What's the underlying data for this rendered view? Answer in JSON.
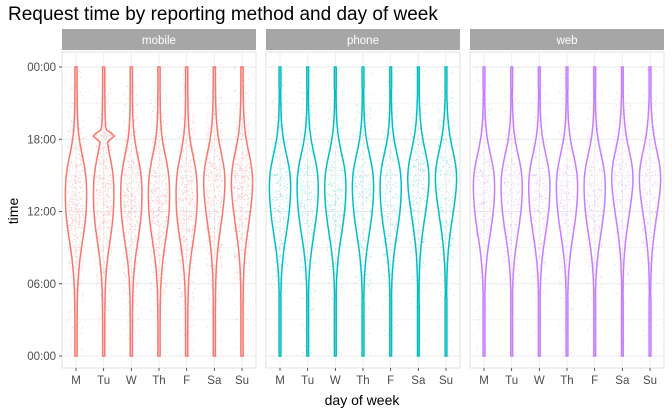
{
  "chart_data": {
    "type": "violin",
    "title": "Request time by reporting method and day of week",
    "xlabel": "day of week",
    "ylabel": "time",
    "ylim": [
      "00:00",
      "24:00"
    ],
    "y_tick_labels": [
      "00:00",
      "06:00",
      "12:00",
      "18:00",
      "00:00"
    ],
    "y_tick_hours": [
      0,
      6,
      12,
      18,
      24
    ],
    "categories": [
      "M",
      "Tu",
      "W",
      "Th",
      "F",
      "Sa",
      "Su"
    ],
    "grid": true,
    "overlay": "jittered points",
    "facets": [
      {
        "name": "mobile",
        "color": "#F8766D",
        "violins": [
          {
            "day": "M",
            "min": 0,
            "max": 24,
            "median": 12.5
          },
          {
            "day": "Tu",
            "min": 0,
            "max": 24,
            "median": 12.5,
            "spike_at": 18.3
          },
          {
            "day": "W",
            "min": 0,
            "max": 24,
            "median": 12.5
          },
          {
            "day": "Th",
            "min": 0,
            "max": 24,
            "median": 12.5
          },
          {
            "day": "F",
            "min": 0,
            "max": 24,
            "median": 12.5
          },
          {
            "day": "Sa",
            "min": 0,
            "max": 24,
            "median": 13.5
          },
          {
            "day": "Su",
            "min": 0,
            "max": 24,
            "median": 13.5
          }
        ]
      },
      {
        "name": "phone",
        "color": "#00BFC4",
        "violins": [
          {
            "day": "M",
            "min": 0,
            "max": 24,
            "median": 13
          },
          {
            "day": "Tu",
            "min": 0,
            "max": 24,
            "median": 13
          },
          {
            "day": "W",
            "min": 0,
            "max": 24,
            "median": 13
          },
          {
            "day": "Th",
            "min": 0,
            "max": 24,
            "median": 13
          },
          {
            "day": "F",
            "min": 0,
            "max": 24,
            "median": 13
          },
          {
            "day": "Sa",
            "min": 0,
            "max": 24,
            "median": 14
          },
          {
            "day": "Su",
            "min": 0,
            "max": 24,
            "median": 14
          }
        ]
      },
      {
        "name": "web",
        "color": "#C77CFF",
        "violins": [
          {
            "day": "M",
            "min": 0,
            "max": 24,
            "median": 13
          },
          {
            "day": "Tu",
            "min": 0,
            "max": 24,
            "median": 13
          },
          {
            "day": "W",
            "min": 0,
            "max": 24,
            "median": 13
          },
          {
            "day": "Th",
            "min": 0,
            "max": 24,
            "median": 13
          },
          {
            "day": "F",
            "min": 0,
            "max": 24,
            "median": 13
          },
          {
            "day": "Sa",
            "min": 0,
            "max": 24,
            "median": 14
          },
          {
            "day": "Su",
            "min": 0,
            "max": 24,
            "median": 14
          }
        ]
      }
    ]
  }
}
